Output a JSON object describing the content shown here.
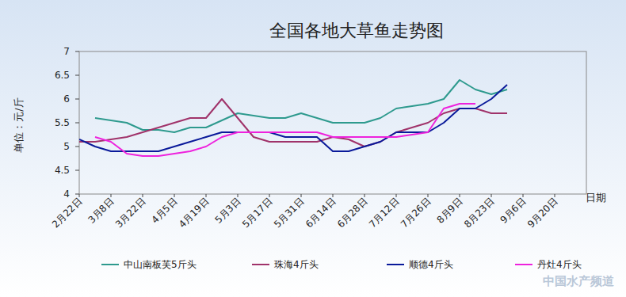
{
  "chart_data": {
    "type": "line",
    "title": "全国各地大草鱼走势图",
    "y_label": "单位：元/斤",
    "x_label": "日期",
    "annotations": [
      "中国水产频道"
    ],
    "categories": [
      "2月22日",
      null,
      "3月8日",
      null,
      "3月22日",
      null,
      "4月5日",
      null,
      "4月19日",
      null,
      "5月3日",
      null,
      "5月17日",
      null,
      "5月31日",
      null,
      "6月14日",
      null,
      "6月28日",
      null,
      "7月12日",
      null,
      "7月26日",
      null,
      "8月9日",
      null,
      "8月23日",
      null,
      "9月6日",
      null,
      "9月20日",
      null,
      null
    ],
    "series": [
      {
        "name": "中山南板芙5斤头",
        "color": "#2e9a8e",
        "values": [
          null,
          5.6,
          5.55,
          5.5,
          5.35,
          5.35,
          5.3,
          5.4,
          5.4,
          5.55,
          5.7,
          5.65,
          5.6,
          5.6,
          5.7,
          5.6,
          5.5,
          5.5,
          5.5,
          5.6,
          5.8,
          5.85,
          5.9,
          6.0,
          6.4,
          6.2,
          6.1,
          6.2,
          null,
          null,
          null,
          null,
          null
        ]
      },
      {
        "name": "珠海4斤头",
        "color": "#a0336a",
        "values": [
          5.1,
          5.1,
          5.15,
          5.2,
          5.3,
          5.4,
          5.5,
          5.6,
          5.6,
          6.0,
          5.6,
          5.2,
          5.1,
          5.1,
          5.1,
          5.1,
          5.2,
          5.15,
          5.0,
          5.1,
          5.3,
          5.4,
          5.5,
          5.7,
          5.8,
          5.8,
          5.7,
          5.7,
          null,
          null,
          null,
          null,
          null
        ]
      },
      {
        "name": "顺德4斤头",
        "color": "#0a1a9a",
        "values": [
          5.15,
          5.0,
          4.9,
          4.9,
          4.9,
          4.9,
          5.0,
          5.1,
          5.2,
          5.3,
          5.3,
          5.3,
          5.3,
          5.2,
          5.2,
          5.2,
          4.9,
          4.9,
          5.0,
          5.1,
          5.3,
          5.3,
          5.3,
          5.5,
          5.8,
          5.8,
          6.0,
          6.3,
          null,
          null,
          null,
          null,
          null
        ]
      },
      {
        "name": "丹灶4斤头",
        "color": "#ee22dd",
        "values": [
          null,
          5.2,
          5.1,
          4.85,
          4.8,
          4.8,
          4.85,
          4.9,
          5.0,
          5.2,
          5.3,
          5.3,
          5.3,
          5.3,
          5.3,
          5.3,
          5.2,
          5.2,
          5.2,
          5.2,
          5.2,
          5.25,
          5.3,
          5.8,
          5.9,
          5.9,
          null,
          null,
          null,
          null,
          null,
          null,
          null
        ]
      }
    ],
    "ylim": [
      4,
      7
    ],
    "yticks": [
      4,
      4.5,
      5,
      5.5,
      6,
      6.5,
      7
    ],
    "grid": false,
    "legend": "bottom",
    "marker": "none",
    "line_style": "solid"
  }
}
